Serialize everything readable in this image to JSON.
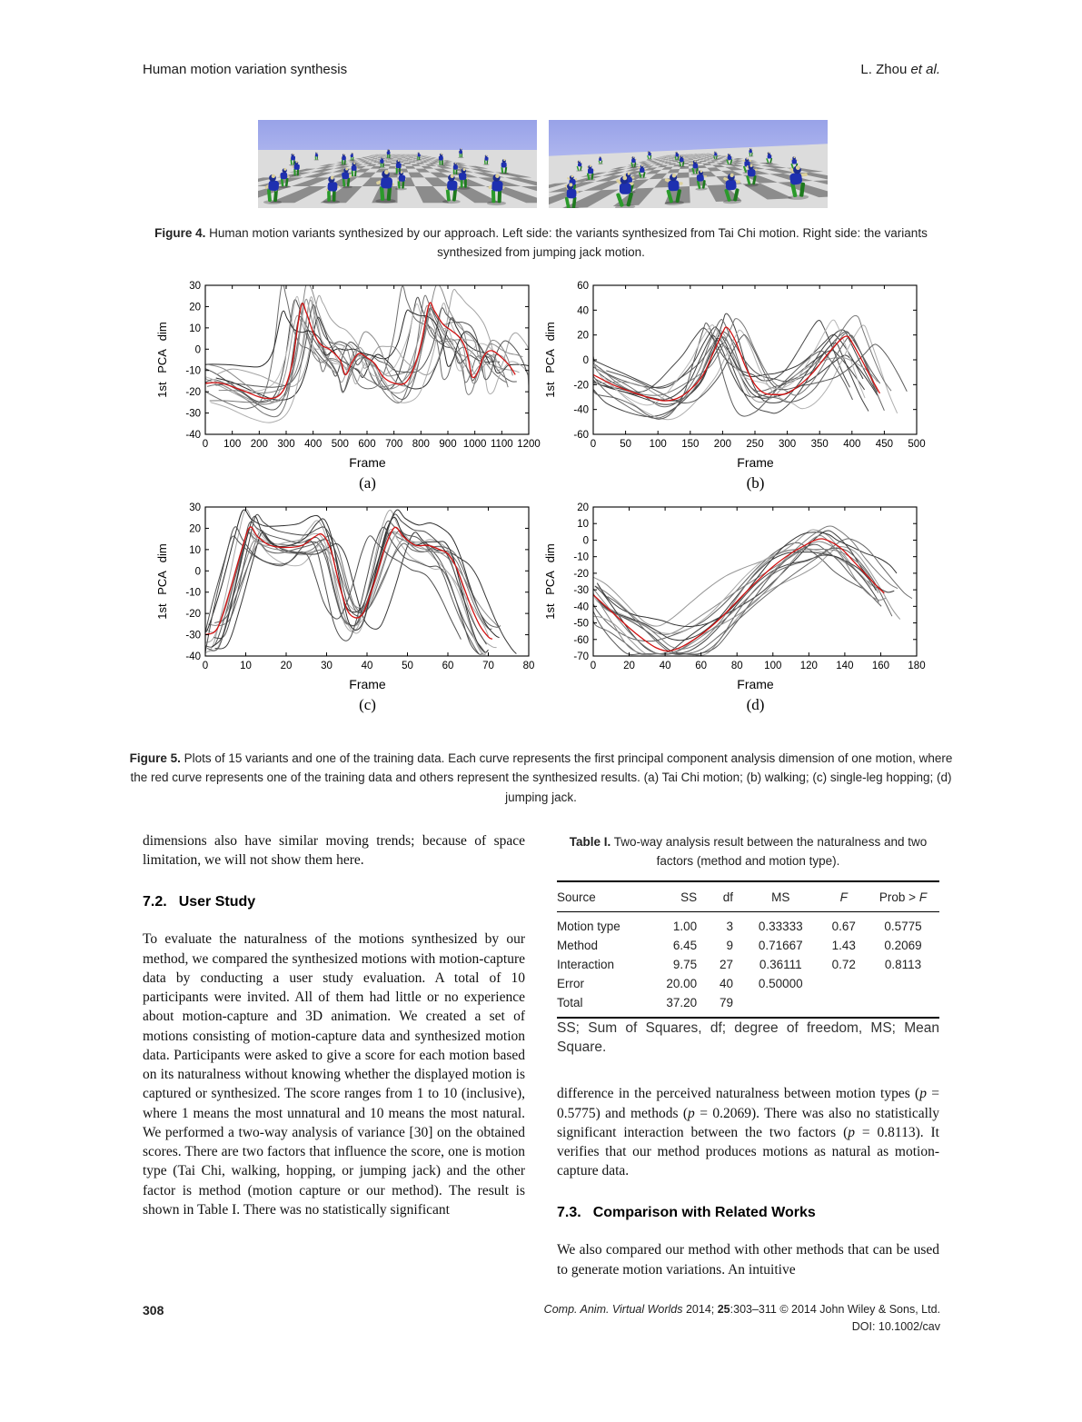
{
  "page": {
    "running_head": "Human motion variation synthesis",
    "running_author_prefix": "L. Zhou ",
    "running_author_italic": "et al.",
    "page_number": "308",
    "footer_journal_italic": "Comp. Anim. Virtual Worlds",
    "footer_mid": " 2014; ",
    "footer_vol_bold": "25",
    "footer_rest": ":303–311 © 2014 John Wiley & Sons, Ltd.",
    "footer_doi": "DOI: 10.1002/cav"
  },
  "figure4": {
    "label": "Figure 4.",
    "caption": " Human motion variants synthesized by our approach. Left side: the variants synthesized from Tai Chi motion. Right side: the variants synthesized from jumping jack motion.",
    "scenes": [
      {
        "name": "tai-chi-variants",
        "pose": "taichi",
        "seed": 5,
        "tilt": 0
      },
      {
        "name": "jumping-jack-variants",
        "pose": "jack",
        "seed": 9,
        "tilt": -2.5
      }
    ],
    "colors": {
      "sky_top": "#98a2e8",
      "sky_bottom": "#ccd1f7",
      "floor_light": "#dcdcdc",
      "floor_dark": "#8c8c8c",
      "body": "#1e30b0",
      "legs": "#2b9a2b",
      "arms": "#dbd09c",
      "head": "#1c2c8f"
    }
  },
  "figure5": {
    "label": "Figure 5.",
    "caption": " Plots of 15 variants and one of the training data. Each curve represents the first principal component analysis dimension of one motion, where the red curve represents one of the training data and others represent the synthesized results. (a) Tai Chi motion; (b) walking; (c) single-leg hopping; (d) jumping jack."
  },
  "chart_data": [
    {
      "type": "line",
      "letter": "(a)",
      "motion": "Tai Chi motion",
      "xlabel": "Frame",
      "ylabel": "1st PCA dim",
      "xlim": [
        0,
        1200
      ],
      "xtick_step": 100,
      "ylim": [
        -40,
        30
      ],
      "ytick_step": 10,
      "grid": false,
      "legend": "none",
      "variant_count": 15,
      "variant_color": "grays",
      "seed": 7,
      "red_curve": {
        "name": "training data",
        "color": "#d21111",
        "x": [
          0,
          60,
          150,
          220,
          280,
          320,
          355,
          375,
          400,
          430,
          460,
          500,
          520,
          545,
          570,
          600,
          630,
          660,
          700,
          740,
          770,
          800,
          830,
          850,
          880,
          910,
          940,
          960,
          975,
          990,
          1010,
          1030,
          1050,
          1070,
          1100,
          1130,
          1150
        ],
        "y": [
          -16,
          -16,
          -20,
          -23,
          -21,
          -8,
          20,
          17,
          8,
          2,
          0,
          -5,
          -12,
          -6,
          -2,
          -4,
          -7,
          -13,
          -16,
          -16,
          -10,
          2,
          21,
          18,
          12,
          9,
          6,
          2,
          -4,
          -13,
          -11,
          -4,
          -1,
          -1,
          -4,
          -8,
          -12
        ]
      }
    },
    {
      "type": "line",
      "letter": "(b)",
      "motion": "walking",
      "xlabel": "Frame",
      "ylabel": "1st PCA dim",
      "xlim": [
        0,
        500
      ],
      "xtick_step": 50,
      "ylim": [
        -60,
        60
      ],
      "ytick_step": 20,
      "grid": false,
      "legend": "none",
      "variant_count": 15,
      "variant_color": "grays",
      "seed": 13,
      "red_curve": {
        "name": "training data",
        "color": "#d21111",
        "x": [
          0,
          30,
          60,
          90,
          110,
          130,
          150,
          170,
          185,
          200,
          207,
          220,
          235,
          250,
          265,
          285,
          300,
          320,
          340,
          360,
          380,
          392,
          400,
          415,
          430,
          443
        ],
        "y": [
          -12,
          -20,
          -26,
          -31,
          -33,
          -31,
          -24,
          -12,
          5,
          22,
          26,
          15,
          -5,
          -20,
          -27,
          -28,
          -27,
          -20,
          -10,
          3,
          15,
          19,
          14,
          0,
          -15,
          -27
        ]
      }
    },
    {
      "type": "line",
      "letter": "(c)",
      "motion": "single-leg hopping",
      "xlabel": "Frame",
      "ylabel": "1st PCA dim",
      "xlim": [
        0,
        80
      ],
      "xtick_step": 10,
      "ylim": [
        -40,
        30
      ],
      "ytick_step": 10,
      "grid": false,
      "legend": "none",
      "variant_count": 15,
      "variant_color": "grays",
      "seed": 21,
      "red_curve": {
        "name": "training data",
        "color": "#d21111",
        "x": [
          0,
          3,
          6,
          9,
          11,
          13,
          16,
          20,
          24,
          27,
          29,
          31,
          33,
          35,
          37,
          39,
          41,
          43,
          45,
          47,
          49,
          52,
          55,
          58,
          60,
          62,
          64,
          66,
          68,
          70,
          71
        ],
        "y": [
          -30,
          -27,
          -10,
          10,
          20.5,
          16,
          12,
          11,
          12,
          16,
          17,
          10,
          -5,
          -18,
          -22,
          -20,
          -10,
          2,
          14,
          20.5,
          16,
          12,
          12,
          10,
          8,
          2,
          -8,
          -18,
          -26,
          -31,
          -32
        ]
      }
    },
    {
      "type": "line",
      "letter": "(d)",
      "motion": "jumping jack",
      "xlabel": "Frame",
      "ylabel": "1st PCA dim",
      "xlim": [
        0,
        180
      ],
      "xtick_step": 20,
      "ylim": [
        -70,
        20
      ],
      "ytick_step": 10,
      "grid": false,
      "legend": "none",
      "variant_count": 15,
      "variant_color": "grays",
      "seed": 29,
      "red_curve": {
        "name": "training data",
        "color": "#d21111",
        "x": [
          0,
          5,
          12,
          20,
          28,
          35,
          42,
          50,
          60,
          70,
          80,
          90,
          100,
          110,
          118,
          125,
          130,
          138,
          145,
          152,
          158,
          162
        ],
        "y": [
          -33,
          -38,
          -45,
          -53,
          -60,
          -65,
          -67,
          -64,
          -57,
          -48,
          -37,
          -26,
          -16,
          -8,
          -3,
          0.5,
          0,
          -5,
          -13,
          -21,
          -28,
          -32
        ]
      }
    }
  ],
  "sections": {
    "para_intro": "dimensions also have similar moving trends; because of space limitation, we will not show them here.",
    "h72_num": "7.2.",
    "h72_title": "User Study",
    "para_user_study": "To evaluate the naturalness of the motions synthesized by our method, we compared the synthesized motions with motion-capture data by conducting a user study evaluation. A total of 10 participants were invited. All of them had little or no experience about motion-capture and 3D animation. We created a set of motions consisting of motion-capture data and synthesized motion data. Participants were asked to give a score for each motion based on its naturalness without knowing whether the displayed motion is captured or synthesized. The score ranges from 1 to 10 (inclusive), where 1 means the most unnatural and 10 means the most natural. We performed a two-way analysis of variance [30] on the obtained scores. There are two factors that influence the score, one is motion type (Tai Chi, walking, hopping, or jumping jack) and the other factor is method (motion capture or our method). The result is shown in Table I. There was no statistically significant",
    "para_results": {
      "t1": "difference in the perceived naturalness between motion types (",
      "p": "p",
      "t2": " = 0.5775) and methods (",
      "t3": " = 0.2069). There was also no statistically significant interaction between the two factors (",
      "t4": " = 0.8113). It verifies that our method produces motions as natural as motion-capture data."
    },
    "h73_num": "7.3.",
    "h73_title": "Comparison with Related Works",
    "para_73": "We also compared our method with other methods that can be used to generate motion variations. An intuitive"
  },
  "table1": {
    "caption_bold": "Table I.",
    "caption_rest": " Two-way analysis result between the naturalness and two factors (method and motion type).",
    "headers": [
      "Source",
      "SS",
      "df",
      "MS",
      "F",
      "Prob > F"
    ],
    "rows": [
      [
        "Motion type",
        "1.00",
        "3",
        "0.33333",
        "0.67",
        "0.5775"
      ],
      [
        "Method",
        "6.45",
        "9",
        "0.71667",
        "1.43",
        "0.2069"
      ],
      [
        "Interaction",
        "9.75",
        "27",
        "0.36111",
        "0.72",
        "0.8113"
      ],
      [
        "Error",
        "20.00",
        "40",
        "0.50000",
        "",
        ""
      ],
      [
        "Total",
        "37.20",
        "79",
        "",
        "",
        ""
      ]
    ],
    "footnote": "SS; Sum of Squares, df; degree of freedom, MS; Mean Square."
  }
}
